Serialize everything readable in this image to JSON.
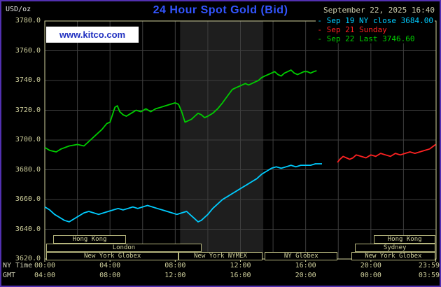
{
  "header": {
    "unit_label": "USD/oz",
    "title": "24 Hour Spot Gold (Bid)",
    "datetime": "September 22, 2025 16:40"
  },
  "watermark": {
    "text": "www.kitco.com"
  },
  "legend": {
    "items": [
      {
        "dash": "-",
        "text": "Sep 19 NY close 3684.00",
        "color": "#00ccff"
      },
      {
        "dash": "-",
        "text": "Sep 21 Sunday",
        "color": "#ff2222"
      },
      {
        "dash": "-",
        "text": "Sep 22 Last 3746.60",
        "color": "#00cc00"
      }
    ]
  },
  "axes": {
    "ny_time_label": "NY Time",
    "gmt_label": "GMT",
    "y_tick_labels": [
      "3780.0",
      "3760.0",
      "3740.0",
      "3720.0",
      "3700.0",
      "3680.0",
      "3660.0",
      "3640.0",
      "3620.0"
    ],
    "x_tick_hours": [
      0,
      4,
      8,
      12,
      16,
      20,
      23.983
    ],
    "ny_time_ticks": [
      "00:00",
      "04:00",
      "08:00",
      "12:00",
      "16:00",
      "20:00",
      "23:59"
    ],
    "gmt_ticks": [
      "04:00",
      "08:00",
      "12:00",
      "16:00",
      "20:00",
      "00:00",
      "03:59"
    ]
  },
  "colors": {
    "background": "#000000",
    "frame_border": "#5230b0",
    "tan": "#cfcf9c",
    "grid": "#3e3e3e",
    "band": "#1e1e1e",
    "title_blue": "#3355ff",
    "kitco_blue": "#2030c0",
    "cyan": "#00ccff",
    "red": "#ff2222",
    "green": "#00cc00"
  },
  "chart_data": {
    "type": "line",
    "title": "24 Hour Spot Gold (Bid)",
    "ylabel": "USD/oz",
    "ylim": [
      3620,
      3780
    ],
    "xlim_hours": [
      0,
      24
    ],
    "grid": true,
    "legend_position": "top-right",
    "nymex_band_hours": [
      8.3,
      13.4
    ],
    "series": [
      {
        "name": "Sep 19 NY close 3684.00",
        "close_value": 3684.0,
        "color": "#00ccff",
        "points": [
          [
            0,
            3655
          ],
          [
            0.3,
            3653
          ],
          [
            0.6,
            3650
          ],
          [
            0.9,
            3648
          ],
          [
            1.2,
            3646
          ],
          [
            1.5,
            3645
          ],
          [
            1.8,
            3647
          ],
          [
            2.1,
            3649
          ],
          [
            2.4,
            3651
          ],
          [
            2.7,
            3652
          ],
          [
            3,
            3651
          ],
          [
            3.3,
            3650
          ],
          [
            3.6,
            3651
          ],
          [
            3.9,
            3652
          ],
          [
            4.2,
            3653
          ],
          [
            4.5,
            3654
          ],
          [
            4.8,
            3653
          ],
          [
            5.1,
            3654
          ],
          [
            5.4,
            3655
          ],
          [
            5.7,
            3654
          ],
          [
            6,
            3655
          ],
          [
            6.3,
            3656
          ],
          [
            6.6,
            3655
          ],
          [
            6.9,
            3654
          ],
          [
            7.2,
            3653
          ],
          [
            7.5,
            3652
          ],
          [
            7.8,
            3651
          ],
          [
            8.1,
            3650
          ],
          [
            8.4,
            3651
          ],
          [
            8.7,
            3652
          ],
          [
            9,
            3649
          ],
          [
            9.2,
            3647
          ],
          [
            9.4,
            3645
          ],
          [
            9.6,
            3646
          ],
          [
            9.8,
            3648
          ],
          [
            10,
            3650
          ],
          [
            10.3,
            3654
          ],
          [
            10.6,
            3657
          ],
          [
            10.9,
            3660
          ],
          [
            11.2,
            3662
          ],
          [
            11.5,
            3664
          ],
          [
            11.8,
            3666
          ],
          [
            12.1,
            3668
          ],
          [
            12.4,
            3670
          ],
          [
            12.7,
            3672
          ],
          [
            13,
            3674
          ],
          [
            13.3,
            3677
          ],
          [
            13.6,
            3679
          ],
          [
            13.9,
            3681
          ],
          [
            14.2,
            3682
          ],
          [
            14.5,
            3681
          ],
          [
            14.8,
            3682
          ],
          [
            15.1,
            3683
          ],
          [
            15.4,
            3682
          ],
          [
            15.7,
            3683
          ],
          [
            16,
            3683
          ],
          [
            16.3,
            3683
          ],
          [
            16.6,
            3684
          ],
          [
            17,
            3684
          ]
        ]
      },
      {
        "name": "Sep 21 Sunday",
        "color": "#ff2222",
        "points": [
          [
            17.95,
            3685
          ],
          [
            18.1,
            3687
          ],
          [
            18.3,
            3689
          ],
          [
            18.5,
            3688
          ],
          [
            18.7,
            3687
          ],
          [
            18.9,
            3688
          ],
          [
            19.1,
            3690
          ],
          [
            19.4,
            3689
          ],
          [
            19.7,
            3688
          ],
          [
            20,
            3690
          ],
          [
            20.3,
            3689
          ],
          [
            20.6,
            3691
          ],
          [
            20.9,
            3690
          ],
          [
            21.2,
            3689
          ],
          [
            21.5,
            3691
          ],
          [
            21.8,
            3690
          ],
          [
            22.1,
            3691
          ],
          [
            22.4,
            3692
          ],
          [
            22.7,
            3691
          ],
          [
            23,
            3692
          ],
          [
            23.3,
            3693
          ],
          [
            23.6,
            3694
          ],
          [
            23.85,
            3696
          ],
          [
            23.98,
            3697
          ]
        ]
      },
      {
        "name": "Sep 22 Last 3746.60",
        "last_value": 3746.6,
        "color": "#00cc00",
        "points": [
          [
            0,
            3695
          ],
          [
            0.3,
            3693
          ],
          [
            0.7,
            3692
          ],
          [
            1,
            3694
          ],
          [
            1.5,
            3696
          ],
          [
            2,
            3697
          ],
          [
            2.4,
            3696
          ],
          [
            2.8,
            3700
          ],
          [
            3.1,
            3703
          ],
          [
            3.5,
            3707
          ],
          [
            3.8,
            3711
          ],
          [
            4,
            3712
          ],
          [
            4.15,
            3717
          ],
          [
            4.3,
            3722
          ],
          [
            4.45,
            3723
          ],
          [
            4.6,
            3719
          ],
          [
            4.8,
            3717
          ],
          [
            5,
            3716
          ],
          [
            5.3,
            3718
          ],
          [
            5.6,
            3720
          ],
          [
            5.9,
            3719
          ],
          [
            6.2,
            3721
          ],
          [
            6.5,
            3719
          ],
          [
            6.8,
            3721
          ],
          [
            7.1,
            3722
          ],
          [
            7.4,
            3723
          ],
          [
            7.7,
            3724
          ],
          [
            8,
            3725
          ],
          [
            8.2,
            3724
          ],
          [
            8.4,
            3719
          ],
          [
            8.6,
            3712
          ],
          [
            8.8,
            3713
          ],
          [
            9,
            3714
          ],
          [
            9.2,
            3716
          ],
          [
            9.4,
            3718
          ],
          [
            9.6,
            3717
          ],
          [
            9.8,
            3715
          ],
          [
            10,
            3716
          ],
          [
            10.3,
            3718
          ],
          [
            10.6,
            3721
          ],
          [
            10.9,
            3725
          ],
          [
            11.1,
            3728
          ],
          [
            11.3,
            3731
          ],
          [
            11.5,
            3734
          ],
          [
            11.7,
            3735
          ],
          [
            11.9,
            3736
          ],
          [
            12.1,
            3737
          ],
          [
            12.3,
            3738
          ],
          [
            12.5,
            3737
          ],
          [
            12.7,
            3738
          ],
          [
            12.9,
            3739
          ],
          [
            13.1,
            3740
          ],
          [
            13.3,
            3742
          ],
          [
            13.5,
            3743
          ],
          [
            13.7,
            3744
          ],
          [
            13.9,
            3745
          ],
          [
            14.1,
            3746
          ],
          [
            14.3,
            3744
          ],
          [
            14.5,
            3743
          ],
          [
            14.7,
            3745
          ],
          [
            14.9,
            3746
          ],
          [
            15.1,
            3747
          ],
          [
            15.3,
            3745
          ],
          [
            15.5,
            3744
          ],
          [
            15.7,
            3745
          ],
          [
            15.9,
            3746
          ],
          [
            16.1,
            3746
          ],
          [
            16.3,
            3745
          ],
          [
            16.5,
            3746
          ],
          [
            16.67,
            3746.6
          ]
        ]
      }
    ],
    "sessions": [
      {
        "row": 0,
        "start": 0.5,
        "end": 5.0,
        "label": "Hong Kong"
      },
      {
        "row": 0,
        "start": 20.2,
        "end": 23.95,
        "label": "Hong Kong"
      },
      {
        "row": 1,
        "start": 0.1,
        "end": 9.6,
        "label": "London"
      },
      {
        "row": 1,
        "start": 19.0,
        "end": 23.95,
        "label": "Sydney"
      },
      {
        "row": 2,
        "start": 0.1,
        "end": 8.2,
        "label": "New York Globex"
      },
      {
        "row": 2,
        "start": 8.2,
        "end": 13.35,
        "label": "New York NYMEX"
      },
      {
        "row": 2,
        "start": 13.5,
        "end": 17.95,
        "label": "NY Globex"
      },
      {
        "row": 2,
        "start": 18.8,
        "end": 23.95,
        "label": "New York Globex"
      }
    ]
  }
}
